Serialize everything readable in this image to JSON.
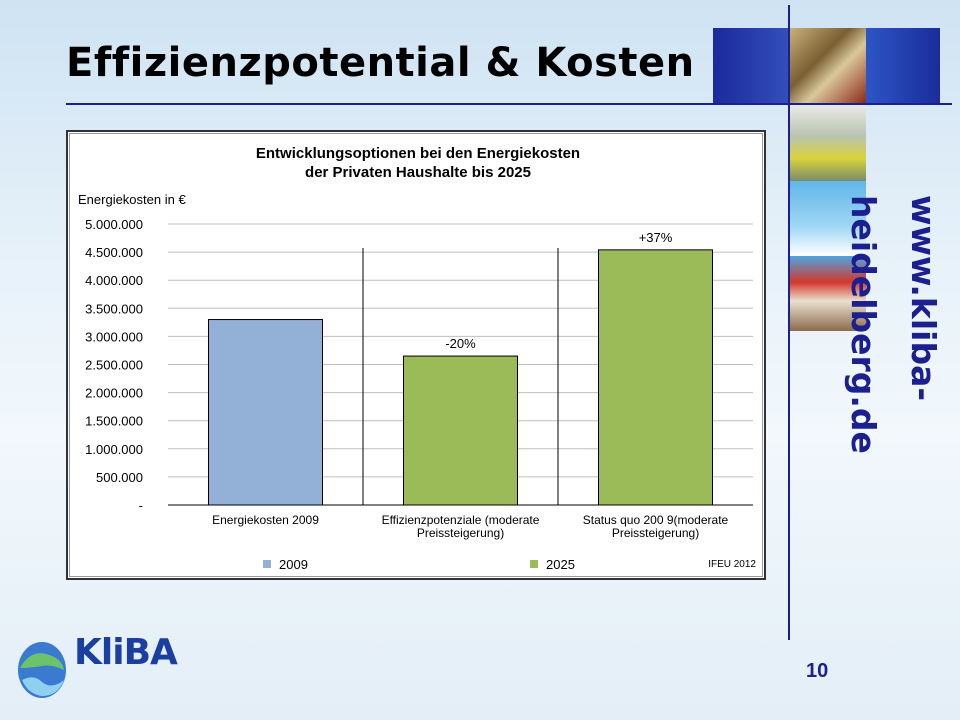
{
  "slide": {
    "title": "Effizienzpotential & Kosten",
    "website": "www.kliba-heidelberg.de",
    "page_number": "10",
    "logo_text": "KliBA"
  },
  "colors": {
    "title_rule": "#1b1f8f",
    "bar_2009": "#93b0d6",
    "bar_2025": "#9bbb59",
    "bar_outline": "#000000",
    "gridline": "#bfbfbf"
  },
  "chart_data": {
    "type": "bar",
    "title": "Entwicklungsoptionen bei den Energiekosten\nder Privaten Haushalte bis 2025",
    "ylabel": "Energiekosten in €",
    "xlabel": "",
    "ylim": [
      0,
      5000000
    ],
    "yticks": [
      {
        "value": 0,
        "label": "-"
      },
      {
        "value": 500000,
        "label": "500.000"
      },
      {
        "value": 1000000,
        "label": "1.000.000"
      },
      {
        "value": 1500000,
        "label": "1.500.000"
      },
      {
        "value": 2000000,
        "label": "2.000.000"
      },
      {
        "value": 2500000,
        "label": "2.500.000"
      },
      {
        "value": 3000000,
        "label": "3.000.000"
      },
      {
        "value": 3500000,
        "label": "3.500.000"
      },
      {
        "value": 4000000,
        "label": "4.000.000"
      },
      {
        "value": 4500000,
        "label": "4.500.000"
      },
      {
        "value": 5000000,
        "label": "5.000.000"
      }
    ],
    "grid": true,
    "categories": [
      [
        "Energiekosten 2009"
      ],
      [
        "Effizienzpotenziale (moderate",
        "Preissteigerung)"
      ],
      [
        "Status quo 200 9(moderate",
        "Preissteigerung)"
      ]
    ],
    "bars": [
      {
        "value": 3300000,
        "series": "2009",
        "annotation": ""
      },
      {
        "value": 2650000,
        "series": "2025",
        "annotation": "-20%"
      },
      {
        "value": 4540000,
        "series": "2025",
        "annotation": "+37%"
      }
    ],
    "series": [
      {
        "name": "2009"
      },
      {
        "name": "2025"
      }
    ],
    "legend_position": "bottom",
    "source": "IFEU 2012"
  }
}
